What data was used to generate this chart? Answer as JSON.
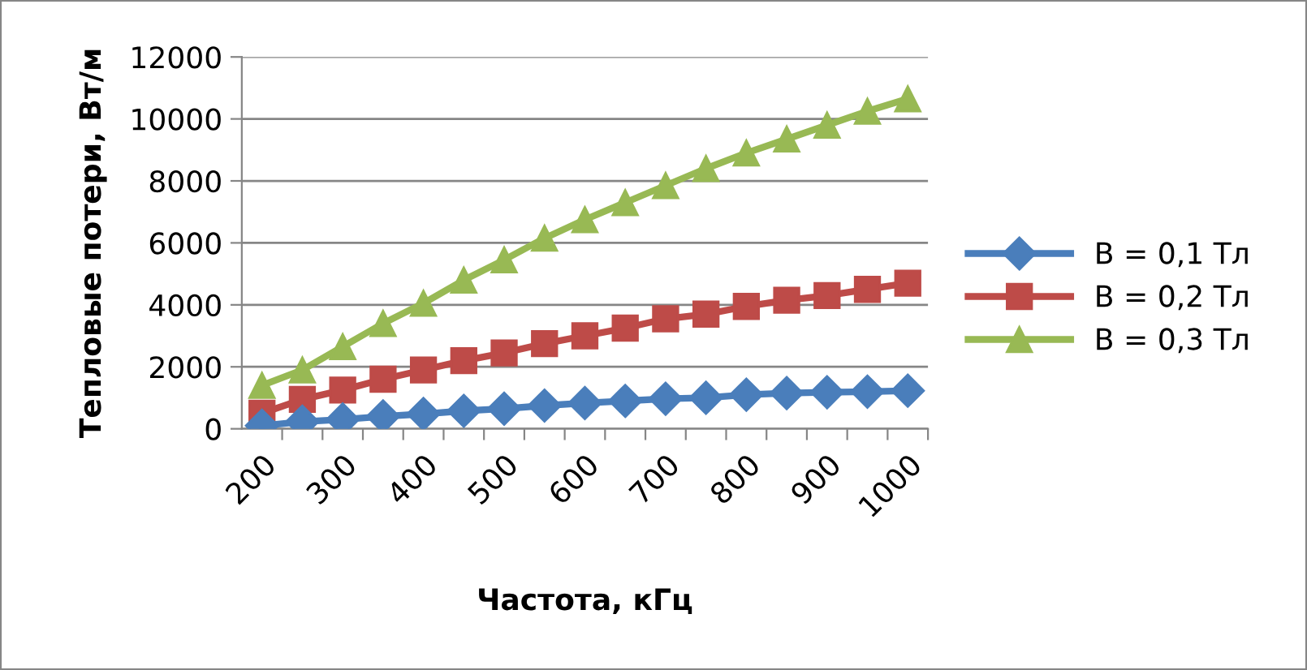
{
  "chart_data": {
    "type": "line",
    "xlabel": "Частота, кГц",
    "ylabel": "Тепловые потери, Вт/м",
    "categories": [
      "200",
      null,
      "300",
      null,
      "400",
      null,
      "500",
      null,
      "600",
      null,
      "700",
      null,
      "800",
      null,
      "900",
      null,
      "1000"
    ],
    "series": [
      {
        "name": "B = 0,1 Тл",
        "color": "#4a7ebb",
        "marker": "diamond",
        "values": [
          100,
          230,
          300,
          400,
          480,
          580,
          650,
          750,
          830,
          900,
          970,
          1000,
          1100,
          1150,
          1180,
          1200,
          1230
        ]
      },
      {
        "name": "B = 0,2 Тл",
        "color": "#be4b48",
        "marker": "square",
        "values": [
          500,
          950,
          1250,
          1600,
          1900,
          2200,
          2450,
          2750,
          3000,
          3250,
          3550,
          3700,
          3950,
          4150,
          4300,
          4500,
          4700
        ]
      },
      {
        "name": "B = 0,3 Тл",
        "color": "#98b954",
        "marker": "triangle",
        "values": [
          1400,
          1900,
          2650,
          3400,
          4050,
          4800,
          5450,
          6150,
          6750,
          7300,
          7850,
          8400,
          8900,
          9350,
          9800,
          10250,
          10650
        ]
      }
    ],
    "ylim": [
      0,
      12000
    ],
    "yticks": [
      0,
      2000,
      4000,
      6000,
      8000,
      10000,
      12000
    ],
    "grid": "y",
    "legend": "right"
  }
}
